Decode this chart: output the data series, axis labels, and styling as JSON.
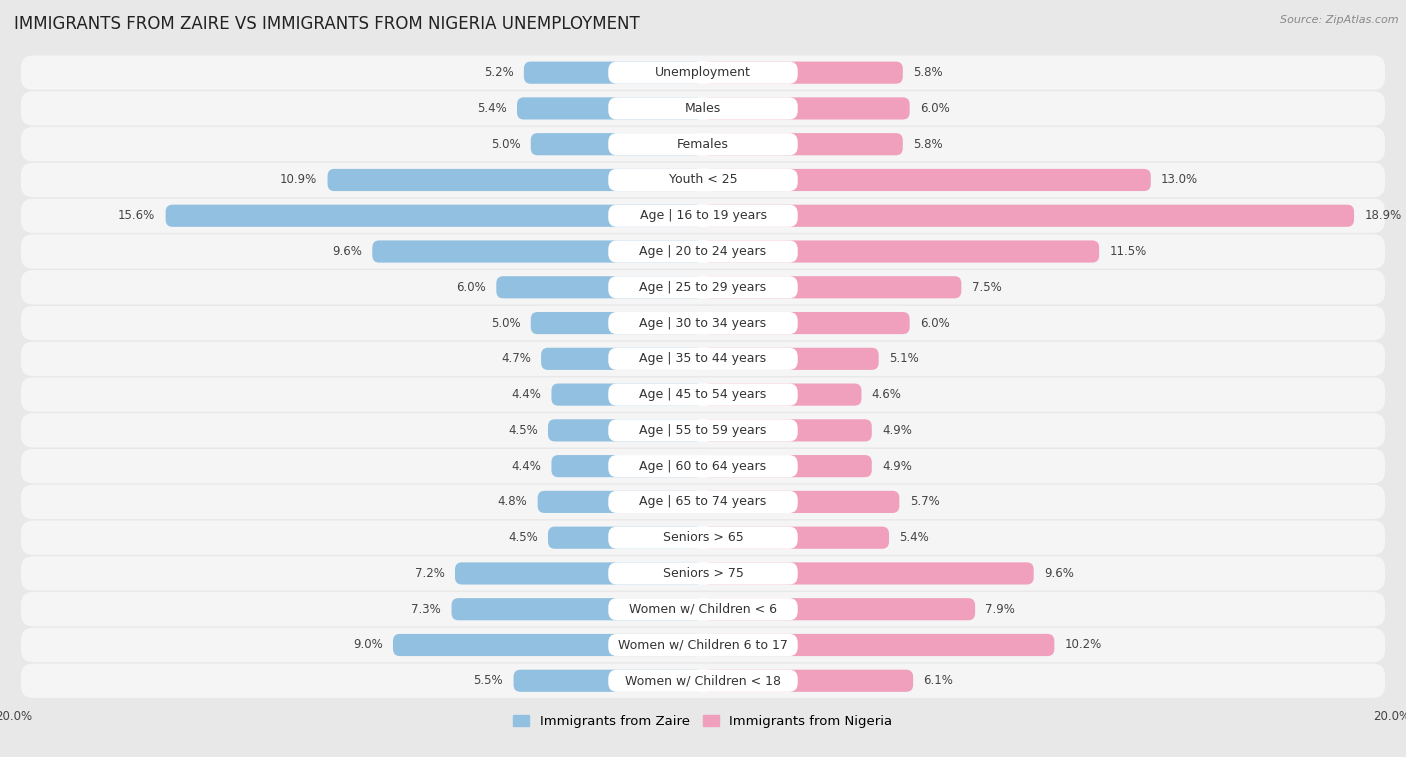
{
  "title": "IMMIGRANTS FROM ZAIRE VS IMMIGRANTS FROM NIGERIA UNEMPLOYMENT",
  "source": "Source: ZipAtlas.com",
  "categories": [
    "Unemployment",
    "Males",
    "Females",
    "Youth < 25",
    "Age | 16 to 19 years",
    "Age | 20 to 24 years",
    "Age | 25 to 29 years",
    "Age | 30 to 34 years",
    "Age | 35 to 44 years",
    "Age | 45 to 54 years",
    "Age | 55 to 59 years",
    "Age | 60 to 64 years",
    "Age | 65 to 74 years",
    "Seniors > 65",
    "Seniors > 75",
    "Women w/ Children < 6",
    "Women w/ Children 6 to 17",
    "Women w/ Children < 18"
  ],
  "zaire_values": [
    5.2,
    5.4,
    5.0,
    10.9,
    15.6,
    9.6,
    6.0,
    5.0,
    4.7,
    4.4,
    4.5,
    4.4,
    4.8,
    4.5,
    7.2,
    7.3,
    9.0,
    5.5
  ],
  "nigeria_values": [
    5.8,
    6.0,
    5.8,
    13.0,
    18.9,
    11.5,
    7.5,
    6.0,
    5.1,
    4.6,
    4.9,
    4.9,
    5.7,
    5.4,
    9.6,
    7.9,
    10.2,
    6.1
  ],
  "zaire_color": "#92c0e0",
  "nigeria_color": "#f0a0bc",
  "zaire_label": "Immigrants from Zaire",
  "nigeria_label": "Immigrants from Nigeria",
  "background_color": "#e8e8e8",
  "row_color": "#f5f5f5",
  "xlim": 20.0,
  "bar_height": 0.62,
  "title_fontsize": 12,
  "label_fontsize": 9.0,
  "value_fontsize": 8.5,
  "legend_fontsize": 9.5
}
